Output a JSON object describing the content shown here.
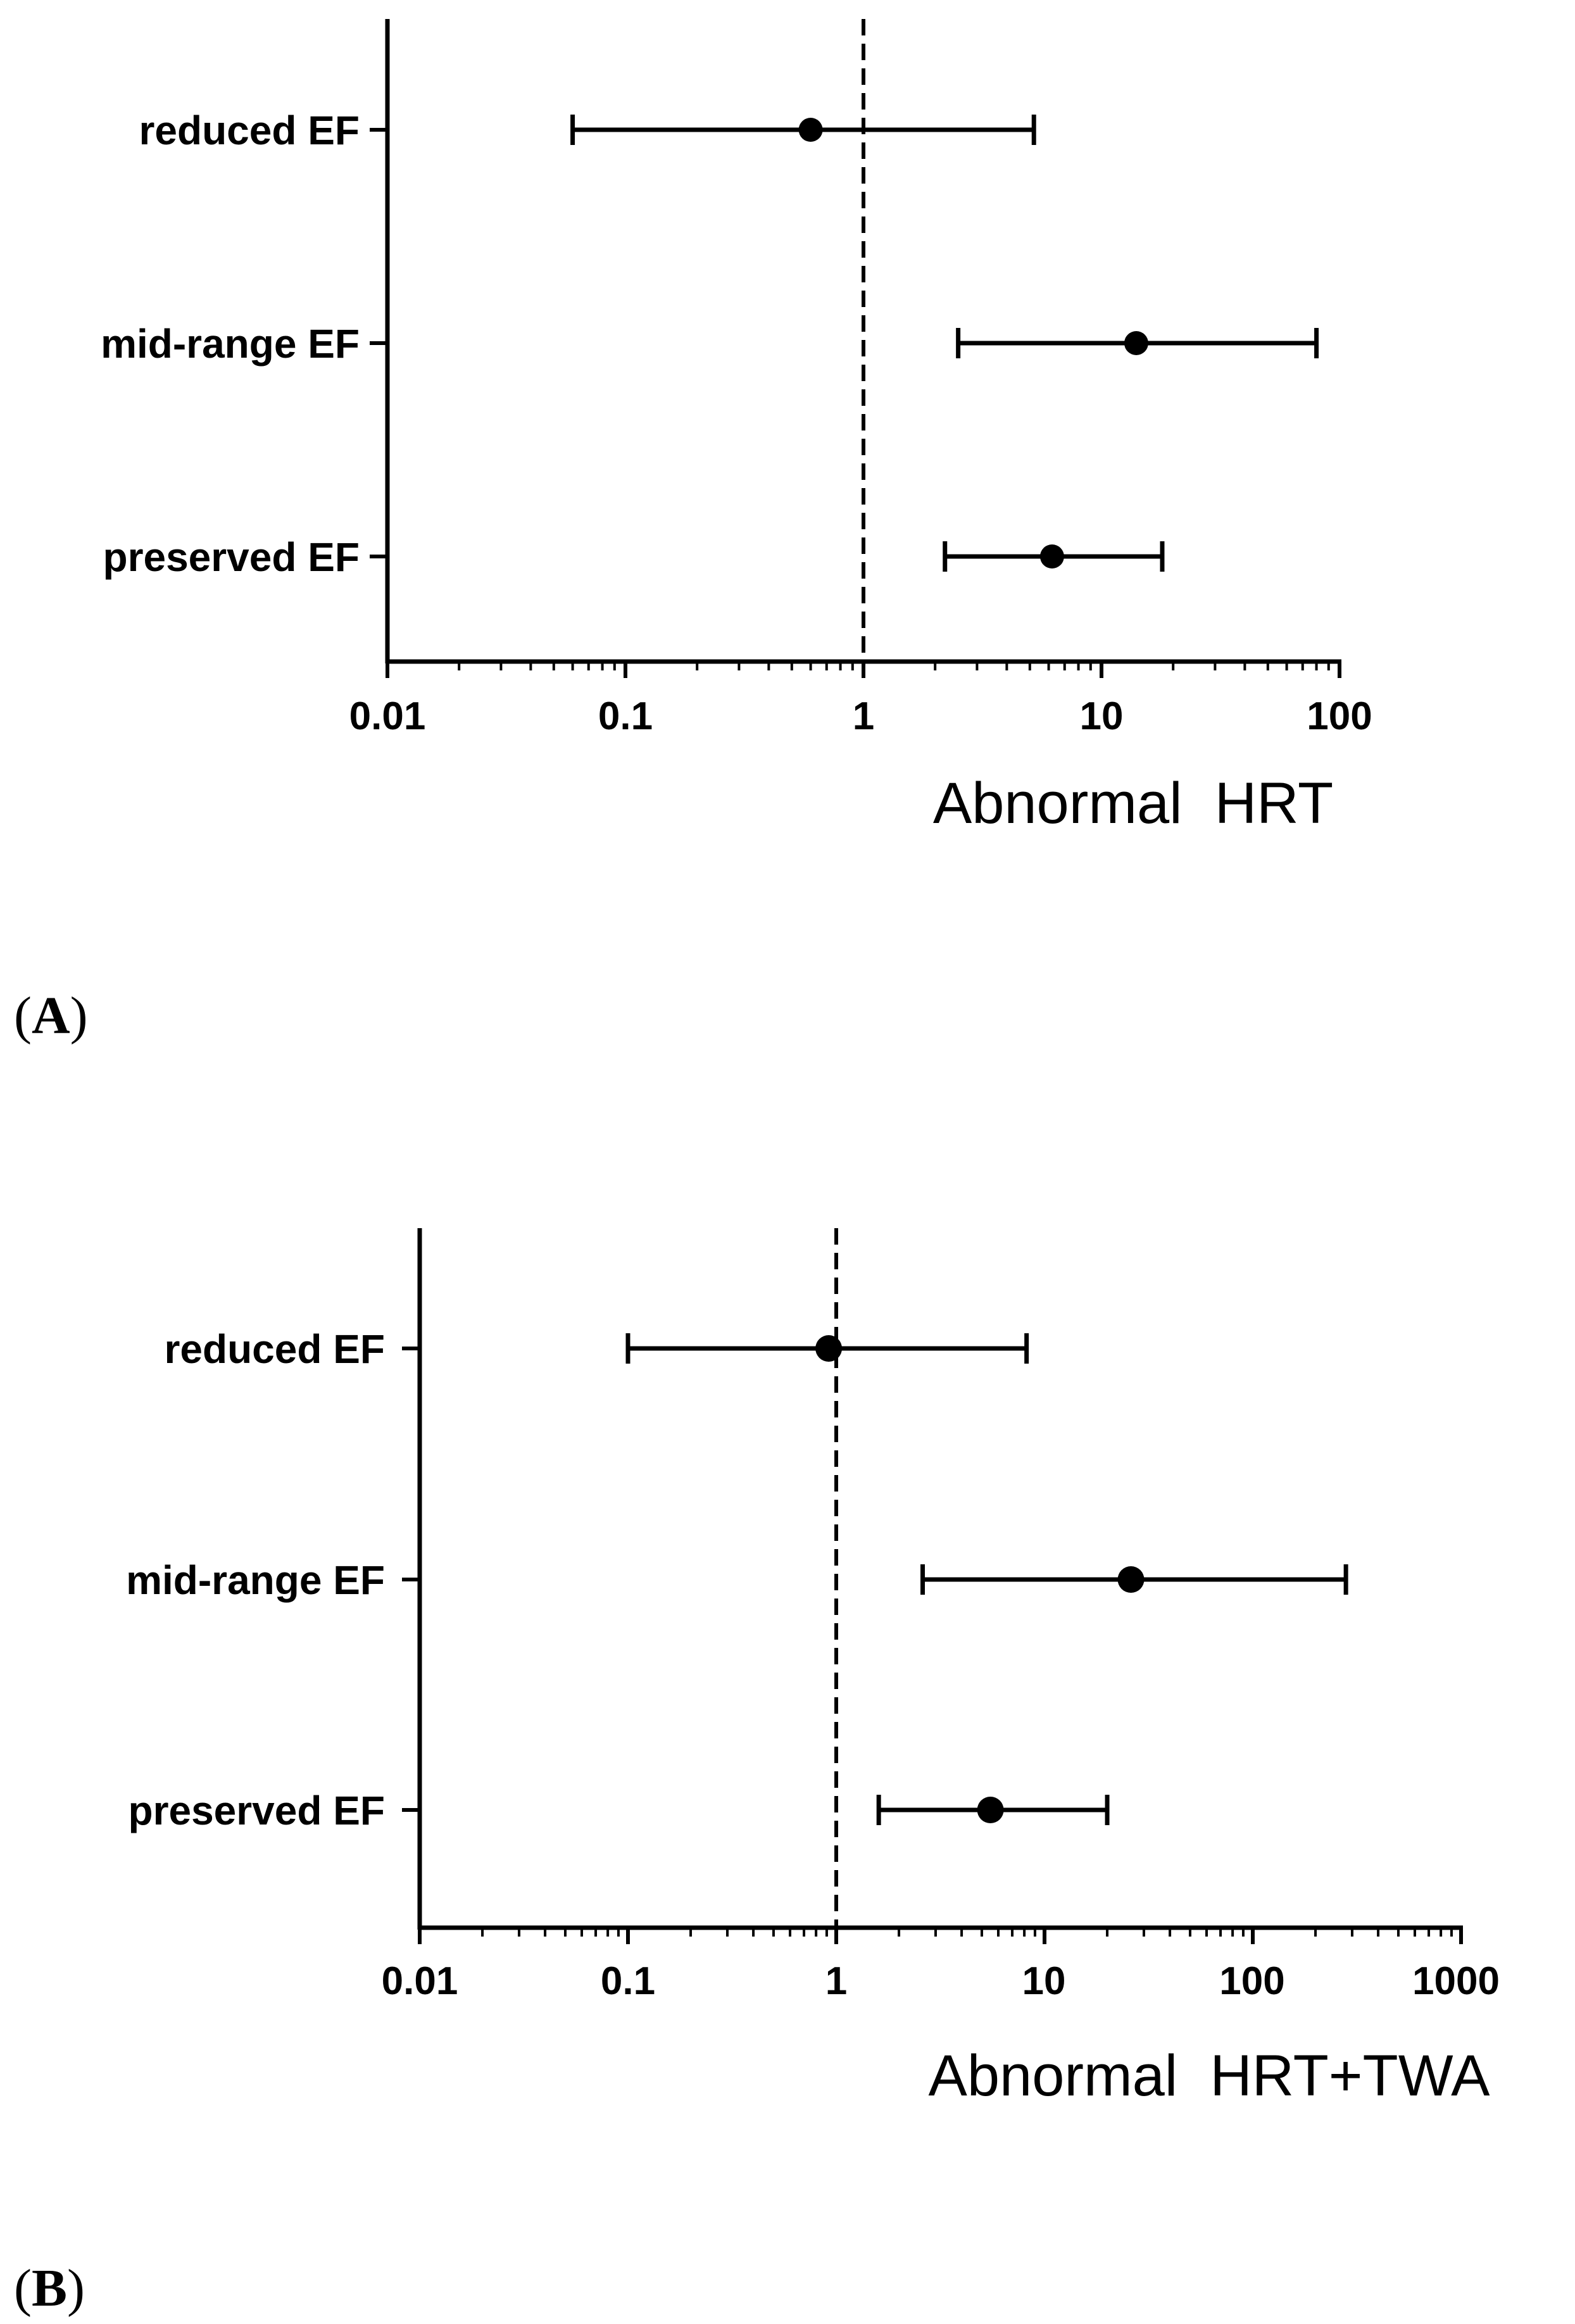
{
  "chart_data": [
    {
      "type": "forest",
      "panel_label": {
        "open": "(",
        "letter": "A",
        "close": ")"
      },
      "xlabel": "Abnormal  HRT",
      "xscale": "log",
      "xlim": [
        0.01,
        100
      ],
      "xticks": [
        "0.01",
        "0.1",
        "1",
        "10",
        "100"
      ],
      "reference_line": 1,
      "categories": [
        "reduced EF",
        "mid-range EF",
        "preserved EF"
      ],
      "estimates": [
        0.6,
        14,
        6.2
      ],
      "ci_lower": [
        0.06,
        2.5,
        2.2
      ],
      "ci_upper": [
        5.2,
        80,
        18
      ]
    },
    {
      "type": "forest",
      "panel_label": {
        "open": "(",
        "letter": "B",
        "close": ")"
      },
      "xlabel": "Abnormal  HRT+TWA",
      "xscale": "log",
      "xlim": [
        0.01,
        1000
      ],
      "xticks": [
        "0.01",
        "0.1",
        "1",
        "10",
        "100",
        "1000"
      ],
      "reference_line": 1,
      "categories": [
        "reduced EF",
        "mid-range EF",
        "preserved EF"
      ],
      "estimates": [
        0.92,
        26,
        5.5
      ],
      "ci_lower": [
        0.1,
        2.6,
        1.6
      ],
      "ci_upper": [
        8.2,
        280,
        20
      ]
    }
  ]
}
